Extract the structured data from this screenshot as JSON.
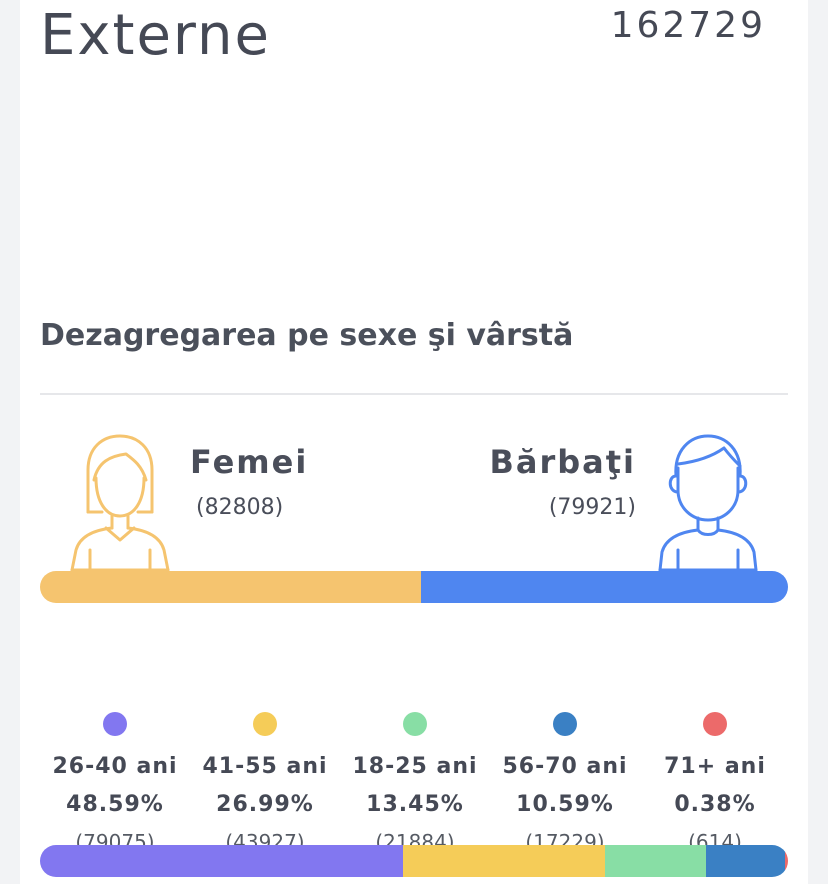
{
  "header": {
    "title": "Externe",
    "total": "162729"
  },
  "section": {
    "subtitle": "Dezagregarea pe sexe şi vârstă"
  },
  "gender": {
    "female": {
      "label": "Femei",
      "count": "(82808)",
      "value": 82808,
      "color": "#f5c46f"
    },
    "male": {
      "label": "Bărbaţi",
      "count": "(79921)",
      "value": 79921,
      "color": "#4f86f0"
    }
  },
  "icons": {
    "female": "woman-outline-icon",
    "male": "man-outline-icon"
  },
  "age_groups": [
    {
      "label": "26-40 ani",
      "percent": "48.59%",
      "count": "(79075)",
      "value": 79075,
      "color": "#8277f0"
    },
    {
      "label": "41-55 ani",
      "percent": "26.99%",
      "count": "(43927)",
      "value": 43927,
      "color": "#f5cc58"
    },
    {
      "label": "18-25 ani",
      "percent": "13.45%",
      "count": "(21884)",
      "value": 21884,
      "color": "#88dea5"
    },
    {
      "label": "56-70 ani",
      "percent": "10.59%",
      "count": "(17229)",
      "value": 17229,
      "color": "#3a80c4"
    },
    {
      "label": "71+ ani",
      "percent": "0.38%",
      "count": "(614)",
      "value": 614,
      "color": "#ec6a6a"
    }
  ]
}
